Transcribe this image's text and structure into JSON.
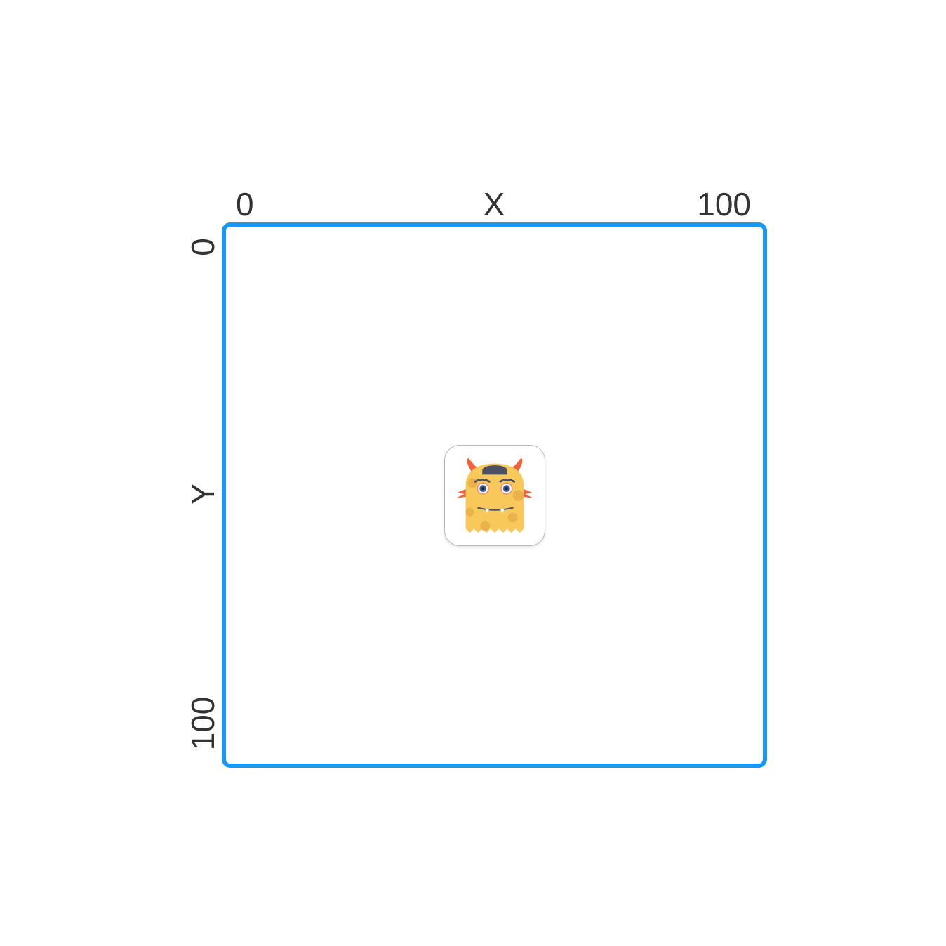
{
  "axes": {
    "x": {
      "title": "X",
      "min_label": "0",
      "max_label": "100"
    },
    "y": {
      "title": "Y",
      "min_label": "0",
      "max_label": "100"
    }
  },
  "plane": {
    "border_color": "#1a98f5"
  },
  "app_icon": {
    "icon": "yellow-monster-icon",
    "position": {
      "x": 50,
      "y": 50
    }
  }
}
